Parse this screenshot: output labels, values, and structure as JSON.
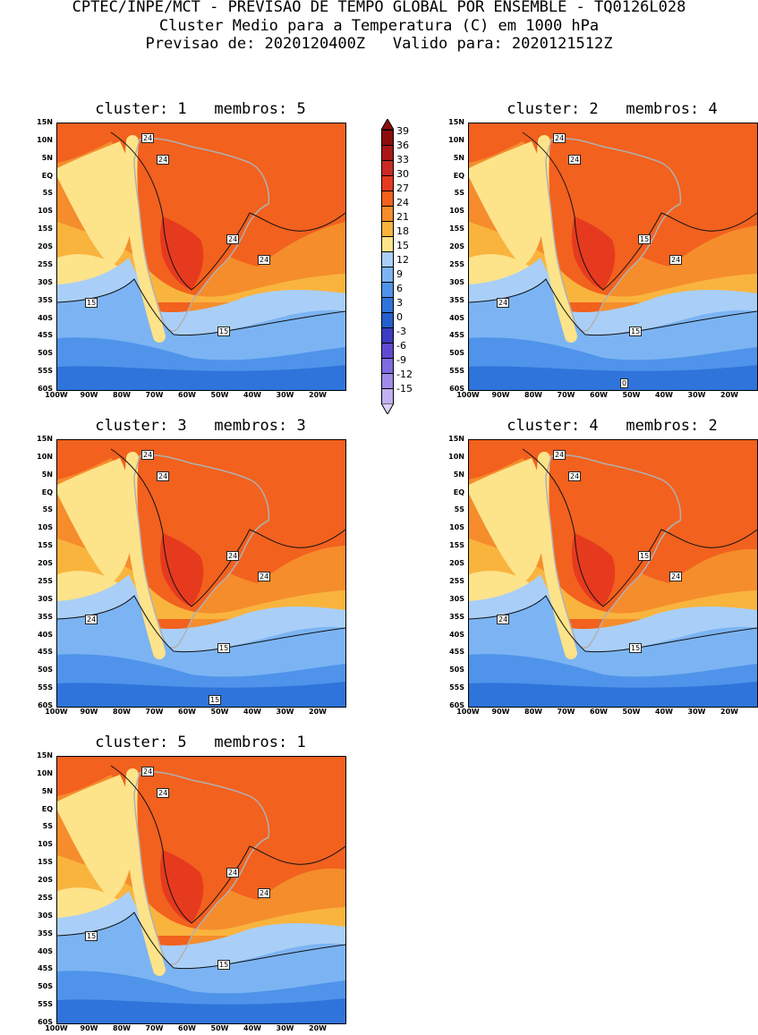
{
  "header": {
    "line1": "CPTEC/INPE/MCT - PREVISAO DE TEMPO GLOBAL POR ENSEMBLE - TQ0126L028",
    "line2": "Cluster Medio para a Temperatura (C) em 1000 hPa",
    "line3": "Previsao de: 2020120400Z   Valido para: 2020121512Z"
  },
  "axes": {
    "lat_labels": [
      "15N",
      "10N",
      "5N",
      "EQ",
      "5S",
      "10S",
      "15S",
      "20S",
      "25S",
      "30S",
      "35S",
      "40S",
      "45S",
      "50S",
      "55S",
      "60S"
    ],
    "lon_labels": [
      "100W",
      "90W",
      "80W",
      "70W",
      "60W",
      "50W",
      "40W",
      "30W",
      "20W"
    ]
  },
  "colorbar": {
    "labels": [
      "39",
      "36",
      "33",
      "30",
      "27",
      "24",
      "21",
      "18",
      "15",
      "12",
      "9",
      "6",
      "3",
      "0",
      "-3",
      "-6",
      "-9",
      "-12",
      "-15"
    ],
    "colors": [
      "#8b0d0d",
      "#a91818",
      "#c92a24",
      "#e63a1e",
      "#f2611e",
      "#f58d2c",
      "#f9b43e",
      "#fde38a",
      "#a9cff8",
      "#7cb4f3",
      "#4f94ea",
      "#2f74da",
      "#245fcc",
      "#3b3cc0",
      "#5f4bd0",
      "#7f6bde",
      "#a08ce8",
      "#c0b1f0",
      "#ddd3f8"
    ]
  },
  "panels": [
    {
      "title": "cluster: 1   membros: 5",
      "contour_labels": [
        "24",
        "24",
        "24",
        "24",
        "15",
        "15"
      ]
    },
    {
      "title": "cluster: 2   membros: 4",
      "contour_labels": [
        "24",
        "24",
        "15",
        "24",
        "24",
        "15",
        "0"
      ]
    },
    {
      "title": "cluster: 3   membros: 3",
      "contour_labels": [
        "24",
        "24",
        "24",
        "24",
        "24",
        "15",
        "15"
      ]
    },
    {
      "title": "cluster: 4   membros: 2",
      "contour_labels": [
        "24",
        "24",
        "15",
        "24",
        "24",
        "15"
      ]
    },
    {
      "title": "cluster: 5   membros: 1",
      "contour_labels": [
        "24",
        "24",
        "24",
        "24",
        "15",
        "15"
      ]
    }
  ]
}
